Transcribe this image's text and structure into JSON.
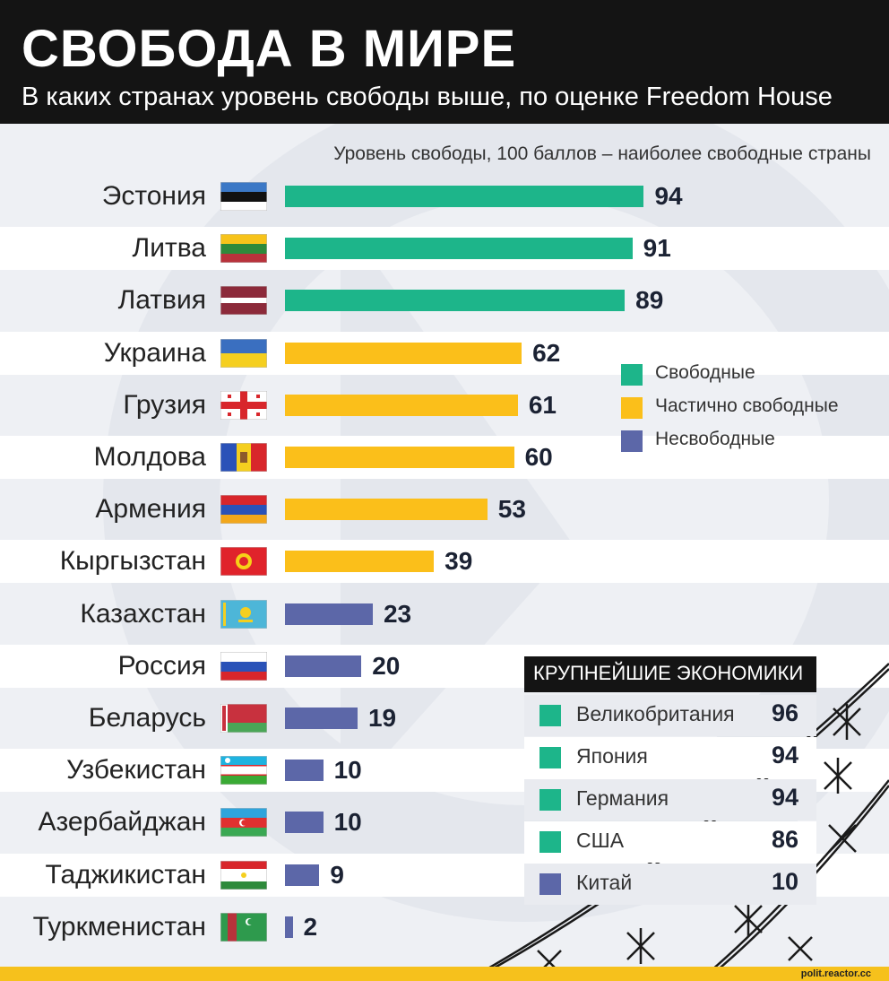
{
  "header": {
    "title": "СВОБОДА В МИРЕ",
    "subtitle": "В каких странах уровень свободы выше, по оценке Freedom House"
  },
  "axis_note": "Уровень свободы, 100 баллов – наиболее свободные страны",
  "colors": {
    "free": "#1db58a",
    "partly": "#fbbf1a",
    "not_free": "#5c67a8",
    "header_bg": "#141414",
    "footer": "#f6c11c"
  },
  "chart_data": {
    "type": "bar",
    "orientation": "horizontal",
    "title": "СВОБОДА В МИРЕ",
    "subtitle": "В каких странах уровень свободы выше, по оценке Freedom House",
    "xlabel": "Уровень свободы, 100 баллов – наиболее свободные страны",
    "xlim": [
      0,
      100
    ],
    "categories": [
      "Эстония",
      "Литва",
      "Латвия",
      "Украина",
      "Грузия",
      "Молдова",
      "Армения",
      "Кыргызстан",
      "Казахстан",
      "Россия",
      "Беларусь",
      "Узбекистан",
      "Азербайджан",
      "Таджикистан",
      "Туркменистан"
    ],
    "values": [
      94,
      91,
      89,
      62,
      61,
      60,
      53,
      39,
      23,
      20,
      19,
      10,
      10,
      9,
      2
    ],
    "status": [
      "free",
      "free",
      "free",
      "partly",
      "partly",
      "partly",
      "partly",
      "partly",
      "not_free",
      "not_free",
      "not_free",
      "not_free",
      "not_free",
      "not_free",
      "not_free"
    ],
    "flags": [
      "flag-estonia-icon",
      "flag-lithuania-icon",
      "flag-latvia-icon",
      "flag-ukraine-icon",
      "flag-georgia-icon",
      "flag-moldova-icon",
      "flag-armenia-icon",
      "flag-kyrgyzstan-icon",
      "flag-kazakhstan-icon",
      "flag-russia-icon",
      "flag-belarus-icon",
      "flag-uzbekistan-icon",
      "flag-azerbaijan-icon",
      "flag-tajikistan-icon",
      "flag-turkmenistan-icon"
    ],
    "legend": [
      {
        "key": "free",
        "label": "Свободные"
      },
      {
        "key": "partly",
        "label": "Частично свободные"
      },
      {
        "key": "not_free",
        "label": "Несвободные"
      }
    ],
    "legend_position": "right",
    "data_labels": true
  },
  "largest_economies": {
    "title": "КРУПНЕЙШИЕ ЭКОНОМИКИ",
    "rows": [
      {
        "name": "Великобритания",
        "value": "96",
        "status": "free"
      },
      {
        "name": "Япония",
        "value": "94",
        "status": "free"
      },
      {
        "name": "Германия",
        "value": "94",
        "status": "free"
      },
      {
        "name": "США",
        "value": "86",
        "status": "free"
      },
      {
        "name": "Китай",
        "value": "10",
        "status": "not_free"
      }
    ]
  },
  "footer": {
    "credit": "polit.reactor.cc"
  }
}
